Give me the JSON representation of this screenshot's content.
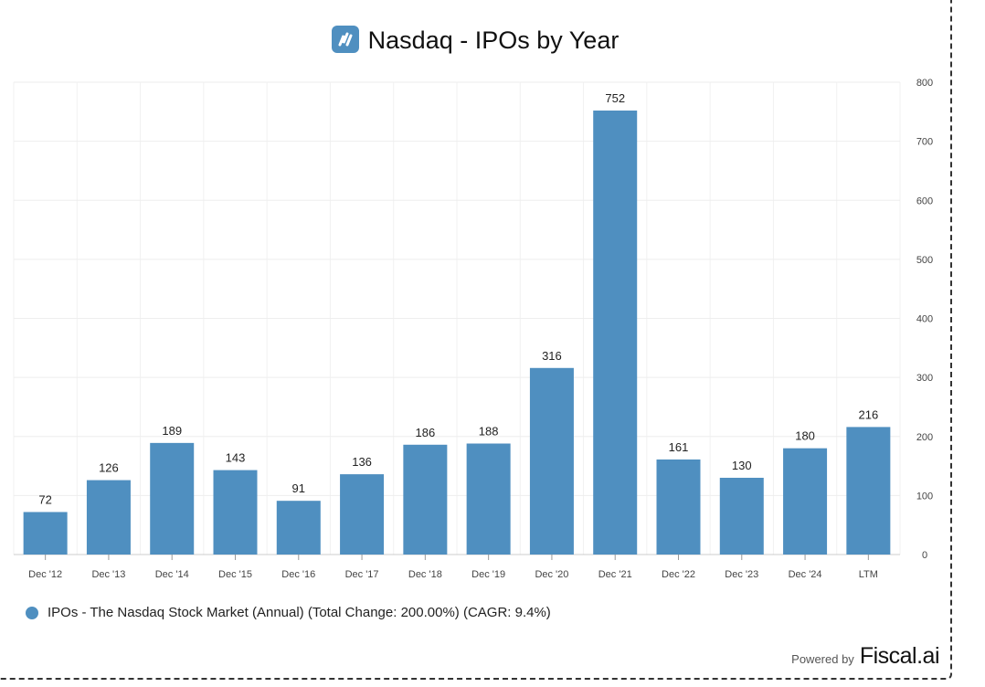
{
  "chart_data": {
    "type": "bar",
    "title": "Nasdaq - IPOs by Year",
    "categories": [
      "Dec '12",
      "Dec '13",
      "Dec '14",
      "Dec '15",
      "Dec '16",
      "Dec '17",
      "Dec '18",
      "Dec '19",
      "Dec '20",
      "Dec '21",
      "Dec '22",
      "Dec '23",
      "Dec '24",
      "LTM"
    ],
    "values": [
      72,
      126,
      189,
      143,
      91,
      136,
      186,
      188,
      316,
      752,
      161,
      130,
      180,
      216
    ],
    "ylim": [
      0,
      800
    ],
    "yticks": [
      0,
      100,
      200,
      300,
      400,
      500,
      600,
      700,
      800
    ],
    "y_axis_side": "right",
    "grid": true,
    "legend_placement": "bottom-left",
    "series": [
      {
        "name": "IPOs - The Nasdaq Stock Market (Annual) (Total Change: 200.00%) (CAGR: 9.4%)"
      }
    ],
    "bar_color": "#4f8fc0"
  },
  "branding": {
    "powered_by": "Powered by",
    "brand": "Fiscal.ai",
    "logo_icon": "nasdaq-logo-icon"
  }
}
